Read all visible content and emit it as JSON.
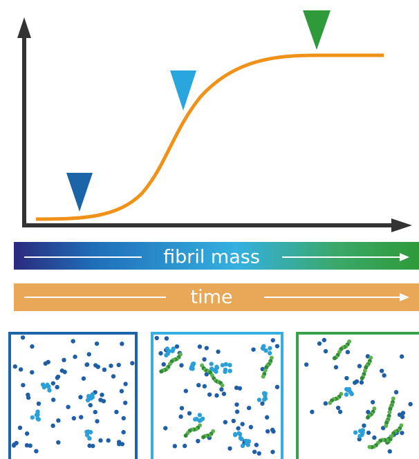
{
  "bars": [
    {
      "label": "fibril mass"
    },
    {
      "label": "time"
    }
  ]
}
